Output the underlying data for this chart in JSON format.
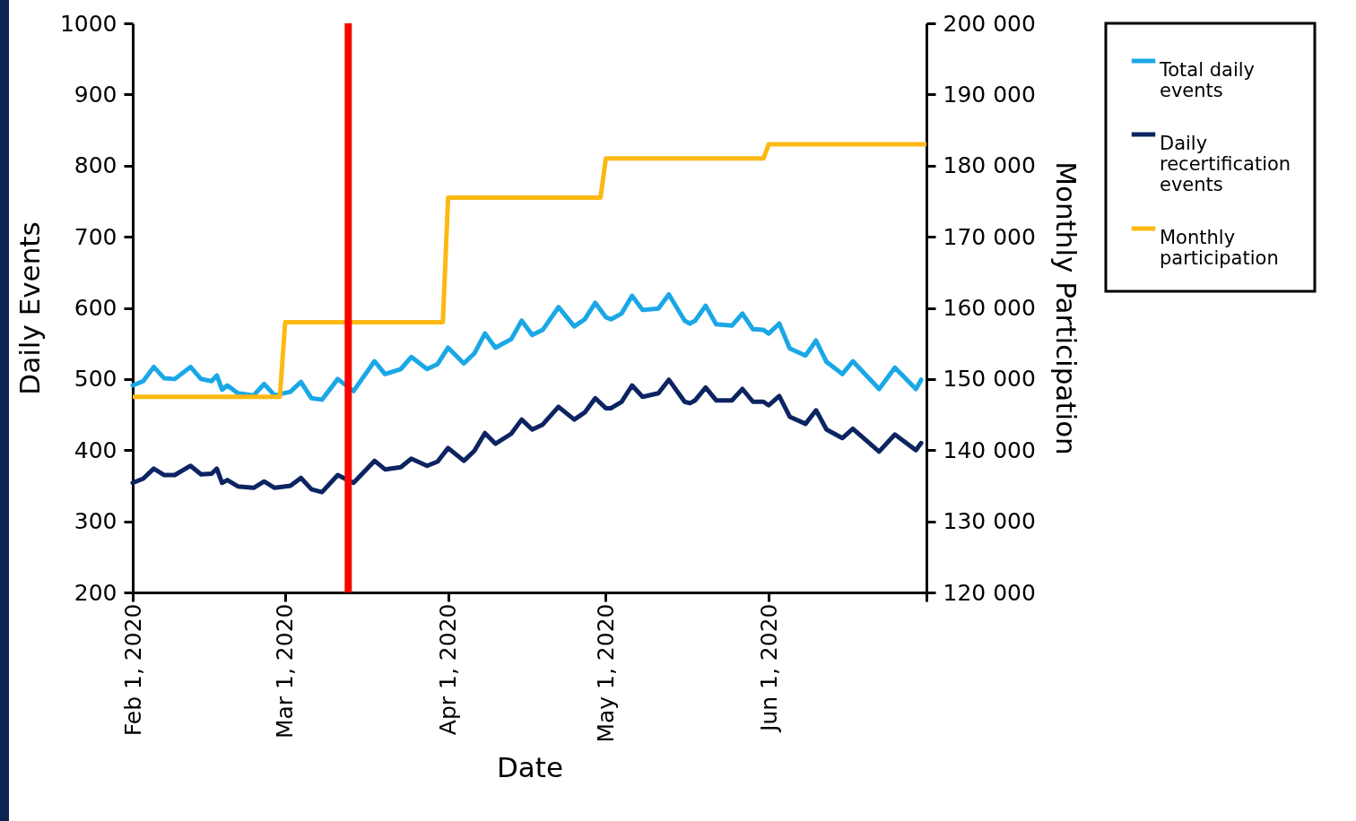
{
  "chart_data": {
    "type": "line",
    "xlabel": "Date",
    "ylabel": "Daily Events",
    "y2label": "Monthly Participation",
    "legend": "right",
    "line_style": "solid",
    "x": [
      "2020-02-01",
      "2020-02-03",
      "2020-02-05",
      "2020-02-07",
      "2020-02-09",
      "2020-02-12",
      "2020-02-14",
      "2020-02-16",
      "2020-02-17",
      "2020-02-18",
      "2020-02-19",
      "2020-02-21",
      "2020-02-24",
      "2020-02-26",
      "2020-02-28",
      "2020-03-02",
      "2020-03-04",
      "2020-03-06",
      "2020-03-08",
      "2020-03-11",
      "2020-03-14",
      "2020-03-18",
      "2020-03-20",
      "2020-03-23",
      "2020-03-25",
      "2020-03-28",
      "2020-03-30",
      "2020-04-01",
      "2020-04-04",
      "2020-04-06",
      "2020-04-08",
      "2020-04-10",
      "2020-04-13",
      "2020-04-15",
      "2020-04-17",
      "2020-04-19",
      "2020-04-22",
      "2020-04-25",
      "2020-04-27",
      "2020-04-29",
      "2020-05-01",
      "2020-05-02",
      "2020-05-04",
      "2020-05-06",
      "2020-05-08",
      "2020-05-11",
      "2020-05-13",
      "2020-05-16",
      "2020-05-17",
      "2020-05-18",
      "2020-05-20",
      "2020-05-22",
      "2020-05-25",
      "2020-05-27",
      "2020-05-29",
      "2020-05-31",
      "2020-06-01",
      "2020-06-03",
      "2020-06-05",
      "2020-06-08",
      "2020-06-10",
      "2020-06-12",
      "2020-06-15",
      "2020-06-17",
      "2020-06-22",
      "2020-06-25",
      "2020-06-29",
      "2020-06-30"
    ],
    "xlim": [
      "2020-02-01",
      "2020-07-01"
    ],
    "xticks": [
      {
        "value": "2020-02-01",
        "label": "Feb 1, 2020"
      },
      {
        "value": "2020-03-01",
        "label": "Mar 1, 2020"
      },
      {
        "value": "2020-04-01",
        "label": "Apr 1, 2020"
      },
      {
        "value": "2020-05-01",
        "label": "May 1, 2020"
      },
      {
        "value": "2020-06-01",
        "label": "Jun 1, 2020"
      },
      {
        "value": "2020-07-01",
        "label": null
      }
    ],
    "ylim": [
      200,
      1000
    ],
    "yticks": [
      200,
      300,
      400,
      500,
      600,
      700,
      800,
      900,
      1000
    ],
    "y2lim": [
      120000,
      200000
    ],
    "y2ticks": [
      {
        "value": 120000,
        "label": "120 000"
      },
      {
        "value": 130000,
        "label": "130 000"
      },
      {
        "value": 140000,
        "label": "140 000"
      },
      {
        "value": 150000,
        "label": "150 000"
      },
      {
        "value": 160000,
        "label": "160 000"
      },
      {
        "value": 170000,
        "label": "170 000"
      },
      {
        "value": 180000,
        "label": "180 000"
      },
      {
        "value": 190000,
        "label": "190 000"
      },
      {
        "value": 200000,
        "label": "200 000"
      }
    ],
    "series": [
      {
        "name": "Total daily events",
        "color": "#1aa7e6",
        "values": [
          491,
          497,
          517,
          501,
          500,
          517,
          500,
          497,
          505,
          485,
          491,
          480,
          477,
          493,
          477,
          482,
          496,
          473,
          471,
          500,
          483,
          525,
          507,
          514,
          531,
          514,
          521,
          544,
          522,
          536,
          564,
          544,
          556,
          582,
          562,
          569,
          601,
          574,
          584,
          607,
          587,
          584,
          592,
          617,
          597,
          599,
          619,
          582,
          578,
          582,
          603,
          577,
          575,
          592,
          570,
          569,
          564,
          578,
          543,
          533,
          554,
          524,
          507,
          525,
          486,
          516,
          486,
          499
        ]
      },
      {
        "name": "Daily recertification events",
        "color": "#0c2461",
        "values": [
          354,
          360,
          374,
          365,
          365,
          378,
          366,
          367,
          374,
          354,
          358,
          349,
          347,
          356,
          347,
          350,
          361,
          345,
          341,
          365,
          354,
          385,
          373,
          376,
          388,
          378,
          384,
          403,
          385,
          399,
          424,
          409,
          423,
          443,
          429,
          436,
          461,
          443,
          453,
          473,
          459,
          459,
          468,
          491,
          475,
          480,
          499,
          468,
          466,
          470,
          488,
          470,
          470,
          486,
          468,
          468,
          463,
          476,
          447,
          437,
          456,
          429,
          417,
          430,
          398,
          422,
          400,
          410
        ]
      },
      {
        "name": "Monthly participation",
        "color": "#fdb913",
        "axis": "y2",
        "x": [
          "2020-02-01",
          "2020-02-29",
          "2020-03-01",
          "2020-03-31",
          "2020-04-01",
          "2020-04-30",
          "2020-05-01",
          "2020-05-31",
          "2020-06-01",
          "2020-07-01"
        ],
        "values": [
          147500,
          147500,
          158000,
          158000,
          175500,
          175500,
          181000,
          181000,
          183000,
          183000
        ]
      }
    ],
    "ref_lines": [
      {
        "axis": "x",
        "value": "2020-03-13",
        "color": "#ff0000"
      }
    ]
  }
}
